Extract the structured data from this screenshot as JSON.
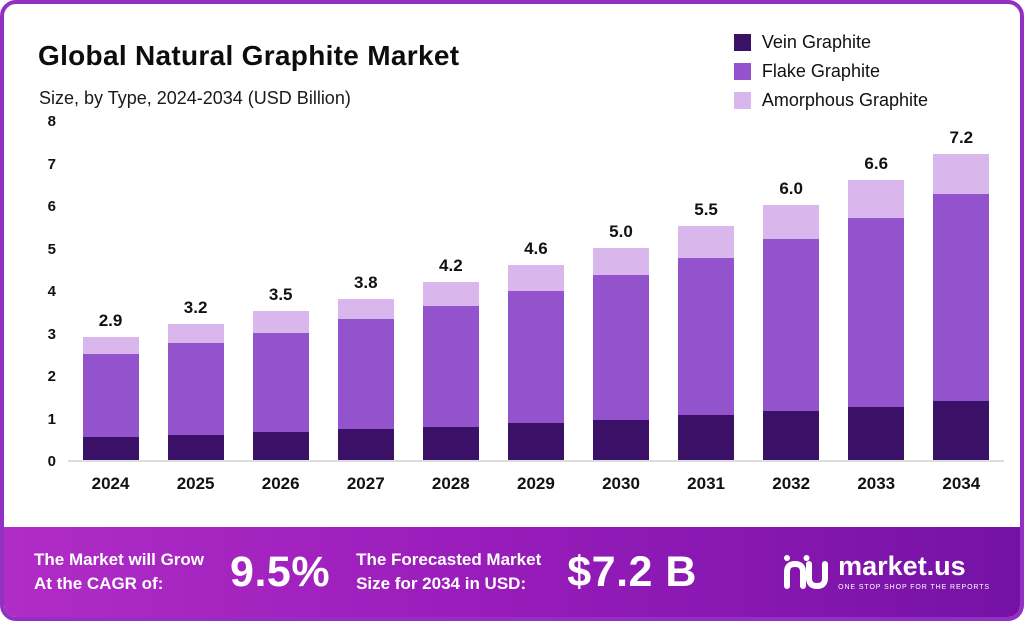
{
  "header": {
    "title": "Global Natural Graphite Market",
    "subtitle": "Size, by Type, 2024-2034 (USD Billion)"
  },
  "legend": [
    {
      "label": "Vein Graphite",
      "color": "#3a1166"
    },
    {
      "label": "Flake Graphite",
      "color": "#9353cd"
    },
    {
      "label": "Amorphous Graphite",
      "color": "#d9b7ed"
    }
  ],
  "chart_data": {
    "type": "bar",
    "stacked": true,
    "title": "Global Natural Graphite Market",
    "subtitle": "Size, by Type, 2024-2034 (USD Billion)",
    "ylabel": "USD Billion",
    "ylim": [
      0,
      8
    ],
    "yticks": [
      0,
      1,
      2,
      3,
      4,
      5,
      6,
      7,
      8
    ],
    "grid": false,
    "legend_position": "top-right",
    "categories": [
      "2024",
      "2025",
      "2026",
      "2027",
      "2028",
      "2029",
      "2030",
      "2031",
      "2032",
      "2033",
      "2034"
    ],
    "series": [
      {
        "name": "Vein Graphite",
        "color": "#3a1166",
        "values": [
          0.55,
          0.6,
          0.65,
          0.72,
          0.78,
          0.88,
          0.95,
          1.05,
          1.15,
          1.25,
          1.4
        ]
      },
      {
        "name": "Flake Graphite",
        "color": "#9353cd",
        "values": [
          1.95,
          2.15,
          2.35,
          2.6,
          2.85,
          3.1,
          3.4,
          3.7,
          4.05,
          4.45,
          4.85
        ]
      },
      {
        "name": "Amorphous Graphite",
        "color": "#d9b7ed",
        "values": [
          0.4,
          0.45,
          0.5,
          0.48,
          0.57,
          0.62,
          0.65,
          0.75,
          0.8,
          0.9,
          0.95
        ]
      }
    ],
    "totals": [
      2.9,
      3.2,
      3.5,
      3.8,
      4.2,
      4.6,
      5.0,
      5.5,
      6.0,
      6.6,
      7.2
    ]
  },
  "banner": {
    "cagr_label_line1": "The Market will Grow",
    "cagr_label_line2": "At the CAGR of:",
    "cagr_value": "9.5%",
    "forecast_label_line1": "The Forecasted Market",
    "forecast_label_line2": "Size for 2034 in USD:",
    "forecast_value": "$7.2 B",
    "brand": "market.us",
    "brand_tagline": "ONE STOP SHOP FOR THE REPORTS"
  }
}
